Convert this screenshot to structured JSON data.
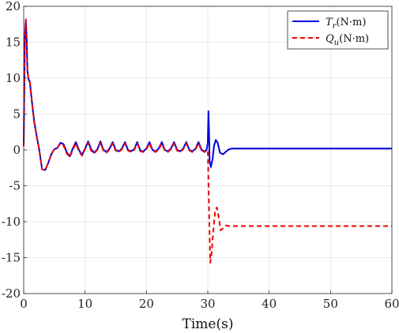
{
  "chart_data": {
    "type": "line",
    "title": "",
    "xlabel": "Time(s)",
    "ylabel": "",
    "xlim": [
      0,
      60
    ],
    "ylim": [
      -20,
      20
    ],
    "xticks": [
      0,
      10,
      20,
      30,
      40,
      50,
      60
    ],
    "yticks": [
      -20,
      -15,
      -10,
      -5,
      0,
      5,
      10,
      15,
      20
    ],
    "grid": true,
    "legend_position": "top-right",
    "series": [
      {
        "name": "T_r(N·m)",
        "legend_symbol": "T",
        "legend_sub": "r",
        "legend_unit": "(N·m)",
        "color": "#0000dd",
        "style": "solid",
        "x": [
          0,
          0.1,
          0.2,
          0.35,
          0.5,
          0.6,
          0.8,
          1.0,
          1.3,
          1.7,
          2.1,
          2.5,
          3.0,
          3.5,
          4.0,
          4.5,
          5.0,
          5.5,
          6.0,
          6.5,
          7.0,
          7.5,
          8.0,
          8.5,
          9.0,
          9.5,
          10.0,
          10.5,
          11.0,
          11.5,
          12.0,
          12.5,
          13.0,
          13.5,
          14.0,
          14.5,
          15.0,
          15.5,
          16.0,
          16.5,
          17.0,
          17.5,
          18.0,
          18.5,
          19.0,
          19.5,
          20.0,
          20.5,
          21.0,
          21.5,
          22.0,
          22.5,
          23.0,
          23.5,
          24.0,
          24.5,
          25.0,
          25.5,
          26.0,
          26.5,
          27.0,
          27.5,
          28.0,
          28.5,
          29.0,
          29.5,
          29.8,
          30.0,
          30.1,
          30.2,
          30.3,
          30.5,
          30.8,
          31.0,
          31.3,
          31.6,
          32.0,
          32.5,
          33.0,
          33.5,
          34.0,
          35.0,
          36.0,
          40.0,
          45.0,
          50.0,
          55.0,
          60.0
        ],
        "y": [
          0.5,
          9.0,
          16.0,
          18.0,
          15.0,
          11.0,
          9.8,
          9.5,
          7.0,
          4.0,
          2.0,
          0.2,
          -2.7,
          -2.8,
          -1.8,
          -0.6,
          0.1,
          0.3,
          1.0,
          0.8,
          -0.3,
          -0.9,
          0.2,
          1.1,
          0.0,
          -0.7,
          0.2,
          1.2,
          0.1,
          -0.4,
          0.1,
          1.2,
          0.0,
          -0.3,
          0.2,
          1.1,
          0.0,
          -0.2,
          0.2,
          1.1,
          0.0,
          -0.2,
          0.1,
          1.1,
          -0.1,
          -0.2,
          0.2,
          1.1,
          0.0,
          -0.2,
          0.2,
          1.1,
          0.0,
          -0.2,
          0.2,
          1.1,
          0.0,
          -0.2,
          0.2,
          1.1,
          0.0,
          -0.2,
          0.2,
          1.1,
          0.0,
          -0.2,
          0.0,
          1.0,
          5.4,
          2.5,
          -1.5,
          -2.4,
          -1.2,
          0.5,
          1.4,
          1.0,
          -0.4,
          -0.6,
          -0.2,
          0.1,
          0.2,
          0.2,
          0.2,
          0.2,
          0.2,
          0.2,
          0.2,
          0.2
        ]
      },
      {
        "name": "Q_u(N·m)",
        "legend_symbol": "Q",
        "legend_sub": "u",
        "legend_unit": "(N·m)",
        "color": "#ee0000",
        "style": "dashed",
        "x": [
          0,
          0.1,
          0.2,
          0.35,
          0.5,
          0.6,
          0.8,
          1.0,
          1.3,
          1.7,
          2.1,
          2.5,
          3.0,
          3.5,
          4.0,
          4.5,
          5.0,
          5.5,
          6.0,
          6.5,
          7.0,
          7.5,
          8.0,
          8.5,
          9.0,
          9.5,
          10.0,
          10.5,
          11.0,
          11.5,
          12.0,
          12.5,
          13.0,
          13.5,
          14.0,
          14.5,
          15.0,
          15.5,
          16.0,
          16.5,
          17.0,
          17.5,
          18.0,
          18.5,
          19.0,
          19.5,
          20.0,
          20.5,
          21.0,
          21.5,
          22.0,
          22.5,
          23.0,
          23.5,
          24.0,
          24.5,
          25.0,
          25.5,
          26.0,
          26.5,
          27.0,
          27.5,
          28.0,
          28.5,
          29.0,
          29.5,
          29.8,
          30.0,
          30.1,
          30.25,
          30.4,
          30.6,
          30.9,
          31.2,
          31.5,
          31.8,
          32.1,
          32.5,
          33.0,
          33.5,
          34.0,
          35.0,
          40.0,
          45.0,
          50.0,
          55.0,
          60.0
        ],
        "y": [
          0.5,
          9.2,
          16.5,
          18.2,
          15.2,
          11.0,
          9.7,
          9.4,
          7.0,
          4.0,
          2.0,
          0.2,
          -2.7,
          -2.8,
          -1.8,
          -0.6,
          0.1,
          0.3,
          0.9,
          0.6,
          -0.5,
          -1.0,
          0.0,
          0.9,
          -0.2,
          -0.8,
          0.1,
          1.0,
          -0.1,
          -0.5,
          0.0,
          1.0,
          -0.1,
          -0.4,
          0.1,
          0.9,
          -0.1,
          -0.3,
          0.1,
          0.9,
          -0.1,
          -0.3,
          0.0,
          0.9,
          -0.2,
          -0.3,
          0.1,
          0.9,
          -0.1,
          -0.3,
          0.1,
          0.9,
          -0.1,
          -0.3,
          0.1,
          0.9,
          -0.1,
          -0.3,
          0.1,
          0.9,
          -0.1,
          -0.3,
          0.1,
          0.9,
          -0.1,
          -0.3,
          -0.1,
          0.0,
          -4.0,
          -10.0,
          -15.7,
          -14.5,
          -11.2,
          -8.5,
          -8.0,
          -9.5,
          -11.2,
          -10.9,
          -10.5,
          -10.6,
          -10.6,
          -10.6,
          -10.6,
          -10.6,
          -10.6,
          -10.6,
          -10.6
        ]
      }
    ]
  }
}
